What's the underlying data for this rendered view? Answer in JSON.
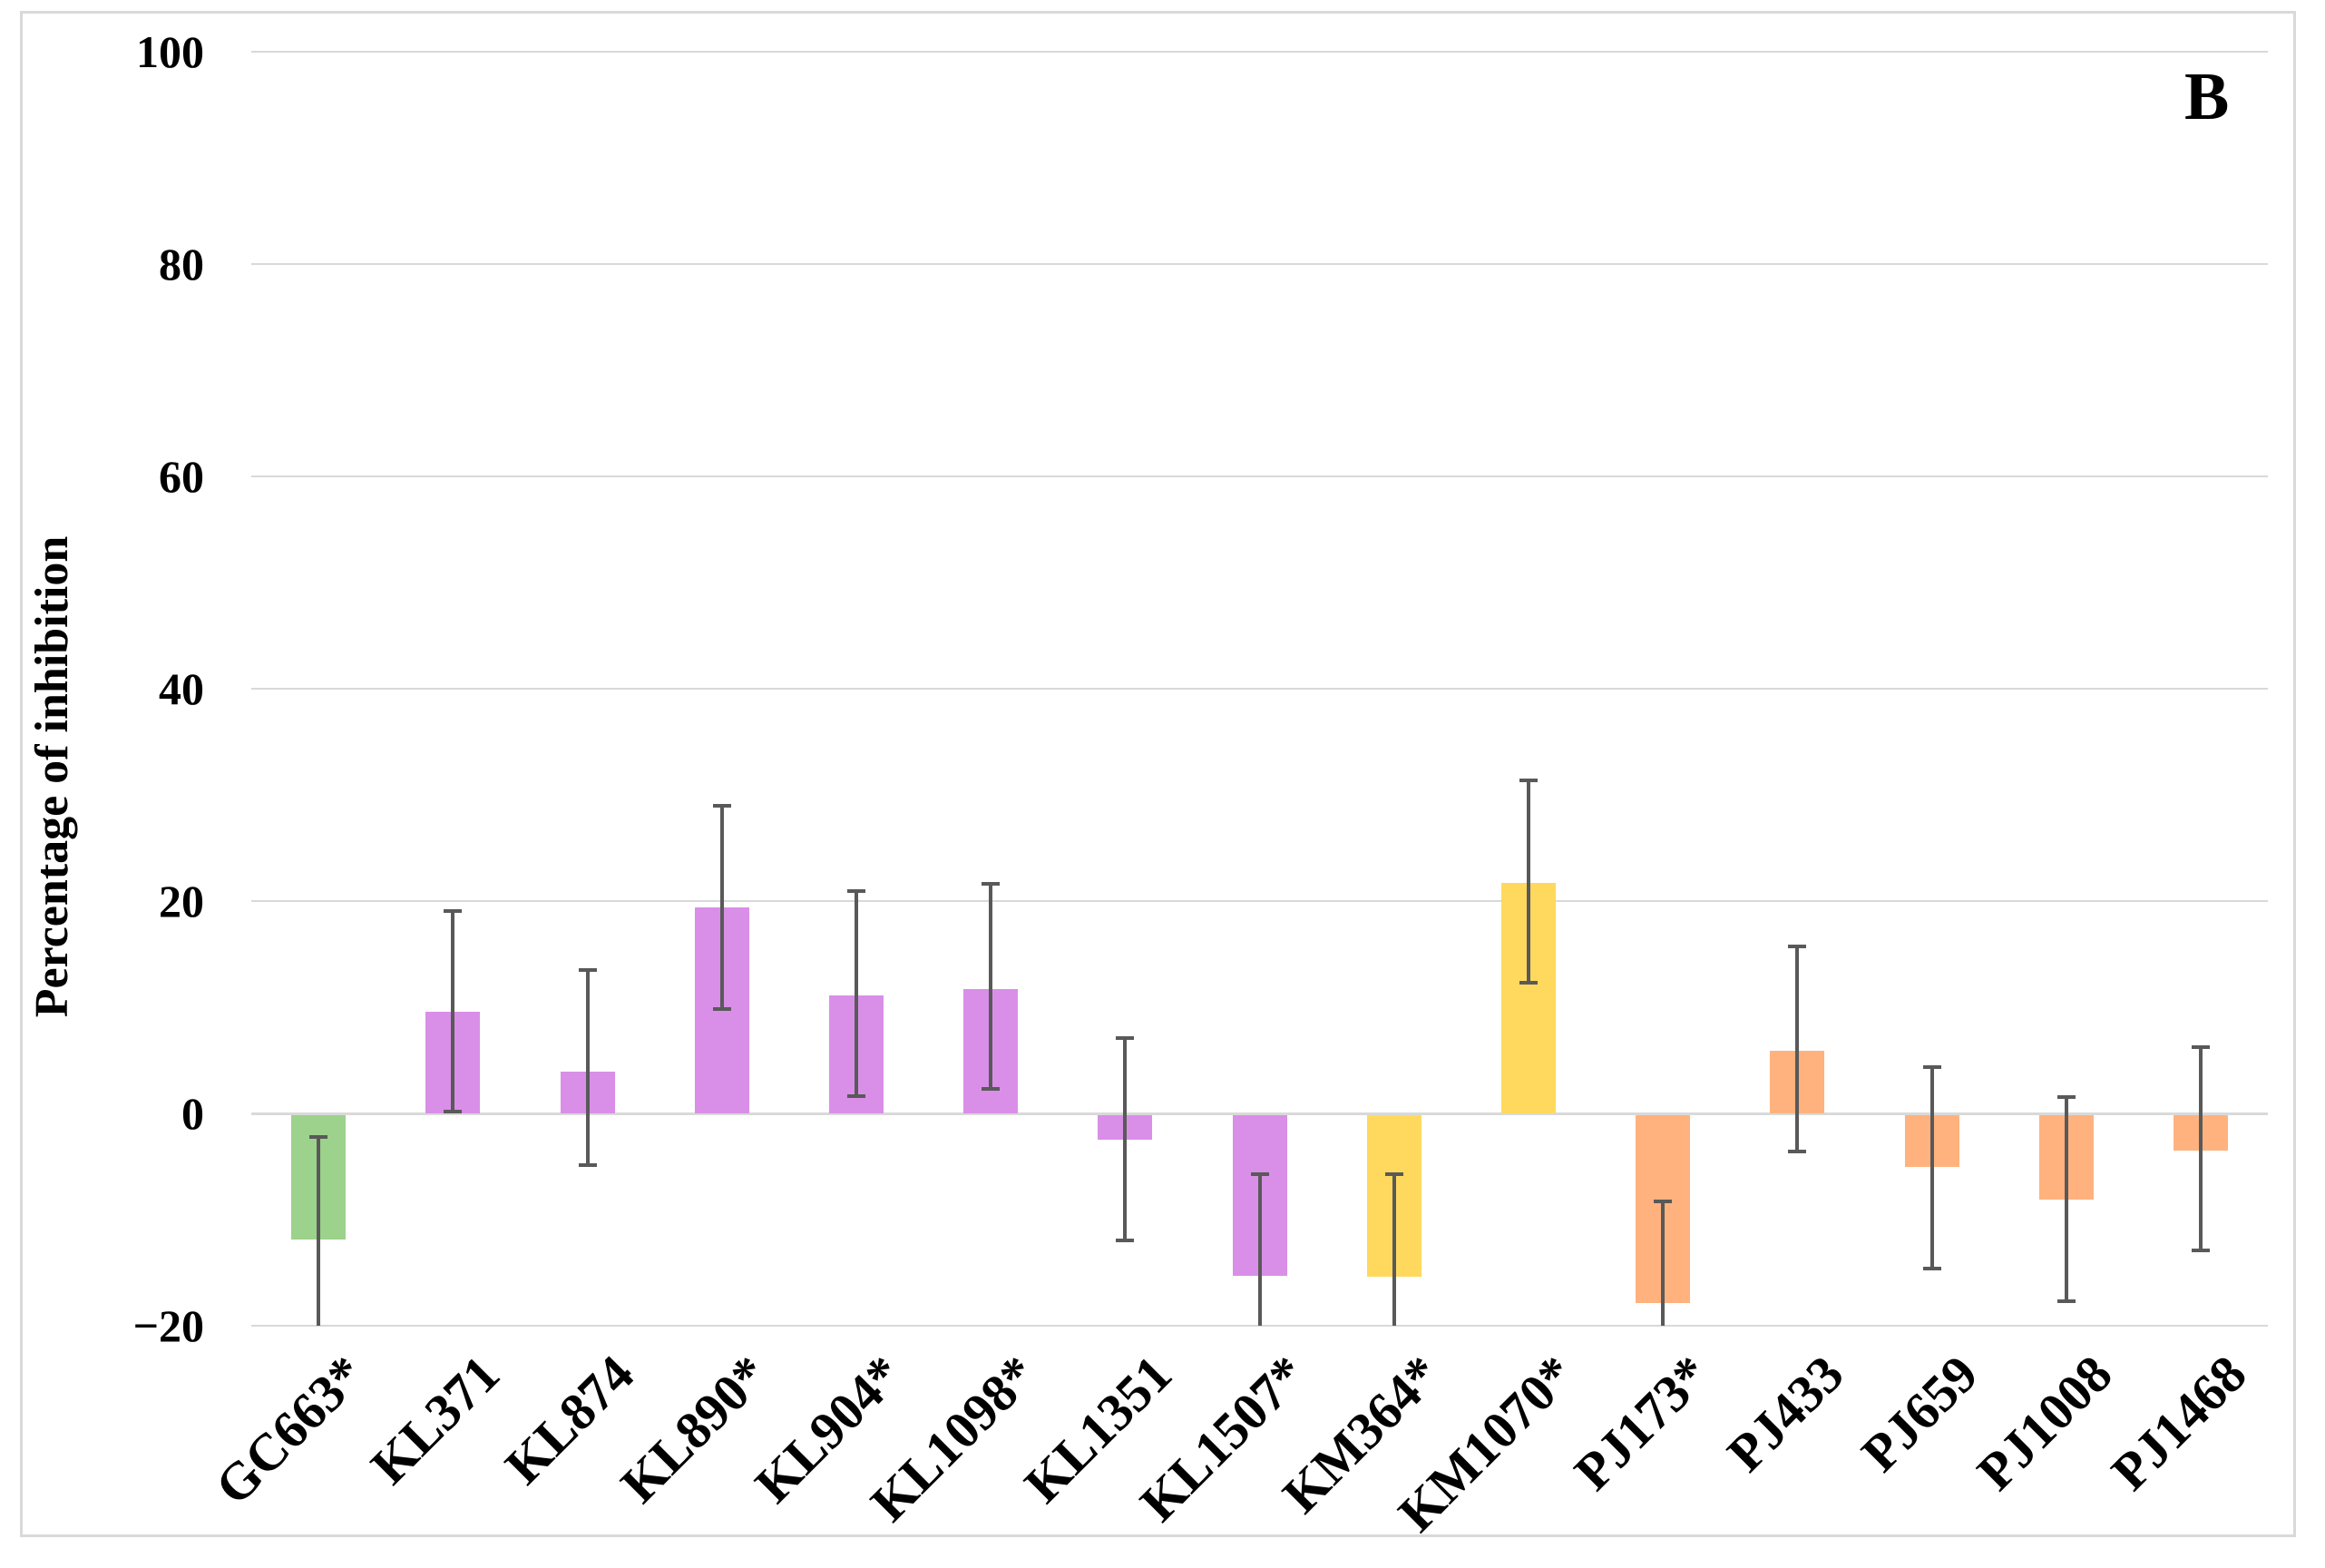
{
  "figure": {
    "panel_label": "B",
    "background": "#ffffff",
    "border_color": "#d9d9d9"
  },
  "chart_data": {
    "type": "bar",
    "title": "",
    "panel_label": "B",
    "xlabel": "",
    "ylabel": "Percentage of inhibition",
    "ylim": [
      -20,
      100
    ],
    "yticks": [
      100,
      80,
      60,
      40,
      20,
      0,
      -20
    ],
    "ytick_labels": [
      "100",
      "80",
      "60",
      "40",
      "20",
      "0",
      "−20"
    ],
    "grid": "horizontal",
    "legend": "none",
    "gridline_color": "#d9d9d9",
    "error_bar_color": "#595959",
    "error_bars_clipped_at_axis_min": true,
    "categories": [
      "GC663*",
      "KL371",
      "KL874",
      "KL890*",
      "KL904*",
      "KL1098*",
      "KL1351",
      "KL1507*",
      "KM364*",
      "KM1070*",
      "PJ173*",
      "PJ433",
      "PJ659",
      "PJ1008",
      "PJ1468"
    ],
    "values": [
      -11.9,
      9.6,
      3.9,
      19.4,
      11.1,
      11.7,
      -2.5,
      -15.3,
      -15.4,
      21.7,
      -17.9,
      5.9,
      -5.0,
      -8.1,
      -3.5
    ],
    "error_low": [
      -21.6,
      0.2,
      -4.9,
      9.8,
      1.6,
      2.3,
      -12.0,
      -24.9,
      -25.1,
      12.3,
      -27.5,
      -3.6,
      -14.6,
      -17.7,
      -12.9
    ],
    "error_high": [
      -2.2,
      19.1,
      13.5,
      29.0,
      20.9,
      21.6,
      7.1,
      -5.7,
      -5.7,
      31.4,
      -8.3,
      15.7,
      4.4,
      1.5,
      6.2
    ],
    "bar_colors": [
      "#9cd28b",
      "#d98fe7",
      "#d98fe7",
      "#d98fe7",
      "#d98fe7",
      "#d98fe7",
      "#d98fe7",
      "#d98fe7",
      "#ffd95d",
      "#ffd95d",
      "#ffb27e",
      "#ffb27e",
      "#ffb27e",
      "#ffb27e",
      "#ffb27e"
    ],
    "color_groups": {
      "green": "#9cd28b",
      "purple": "#d98fe7",
      "yellow": "#ffd95d",
      "orange": "#ffb27e"
    }
  }
}
